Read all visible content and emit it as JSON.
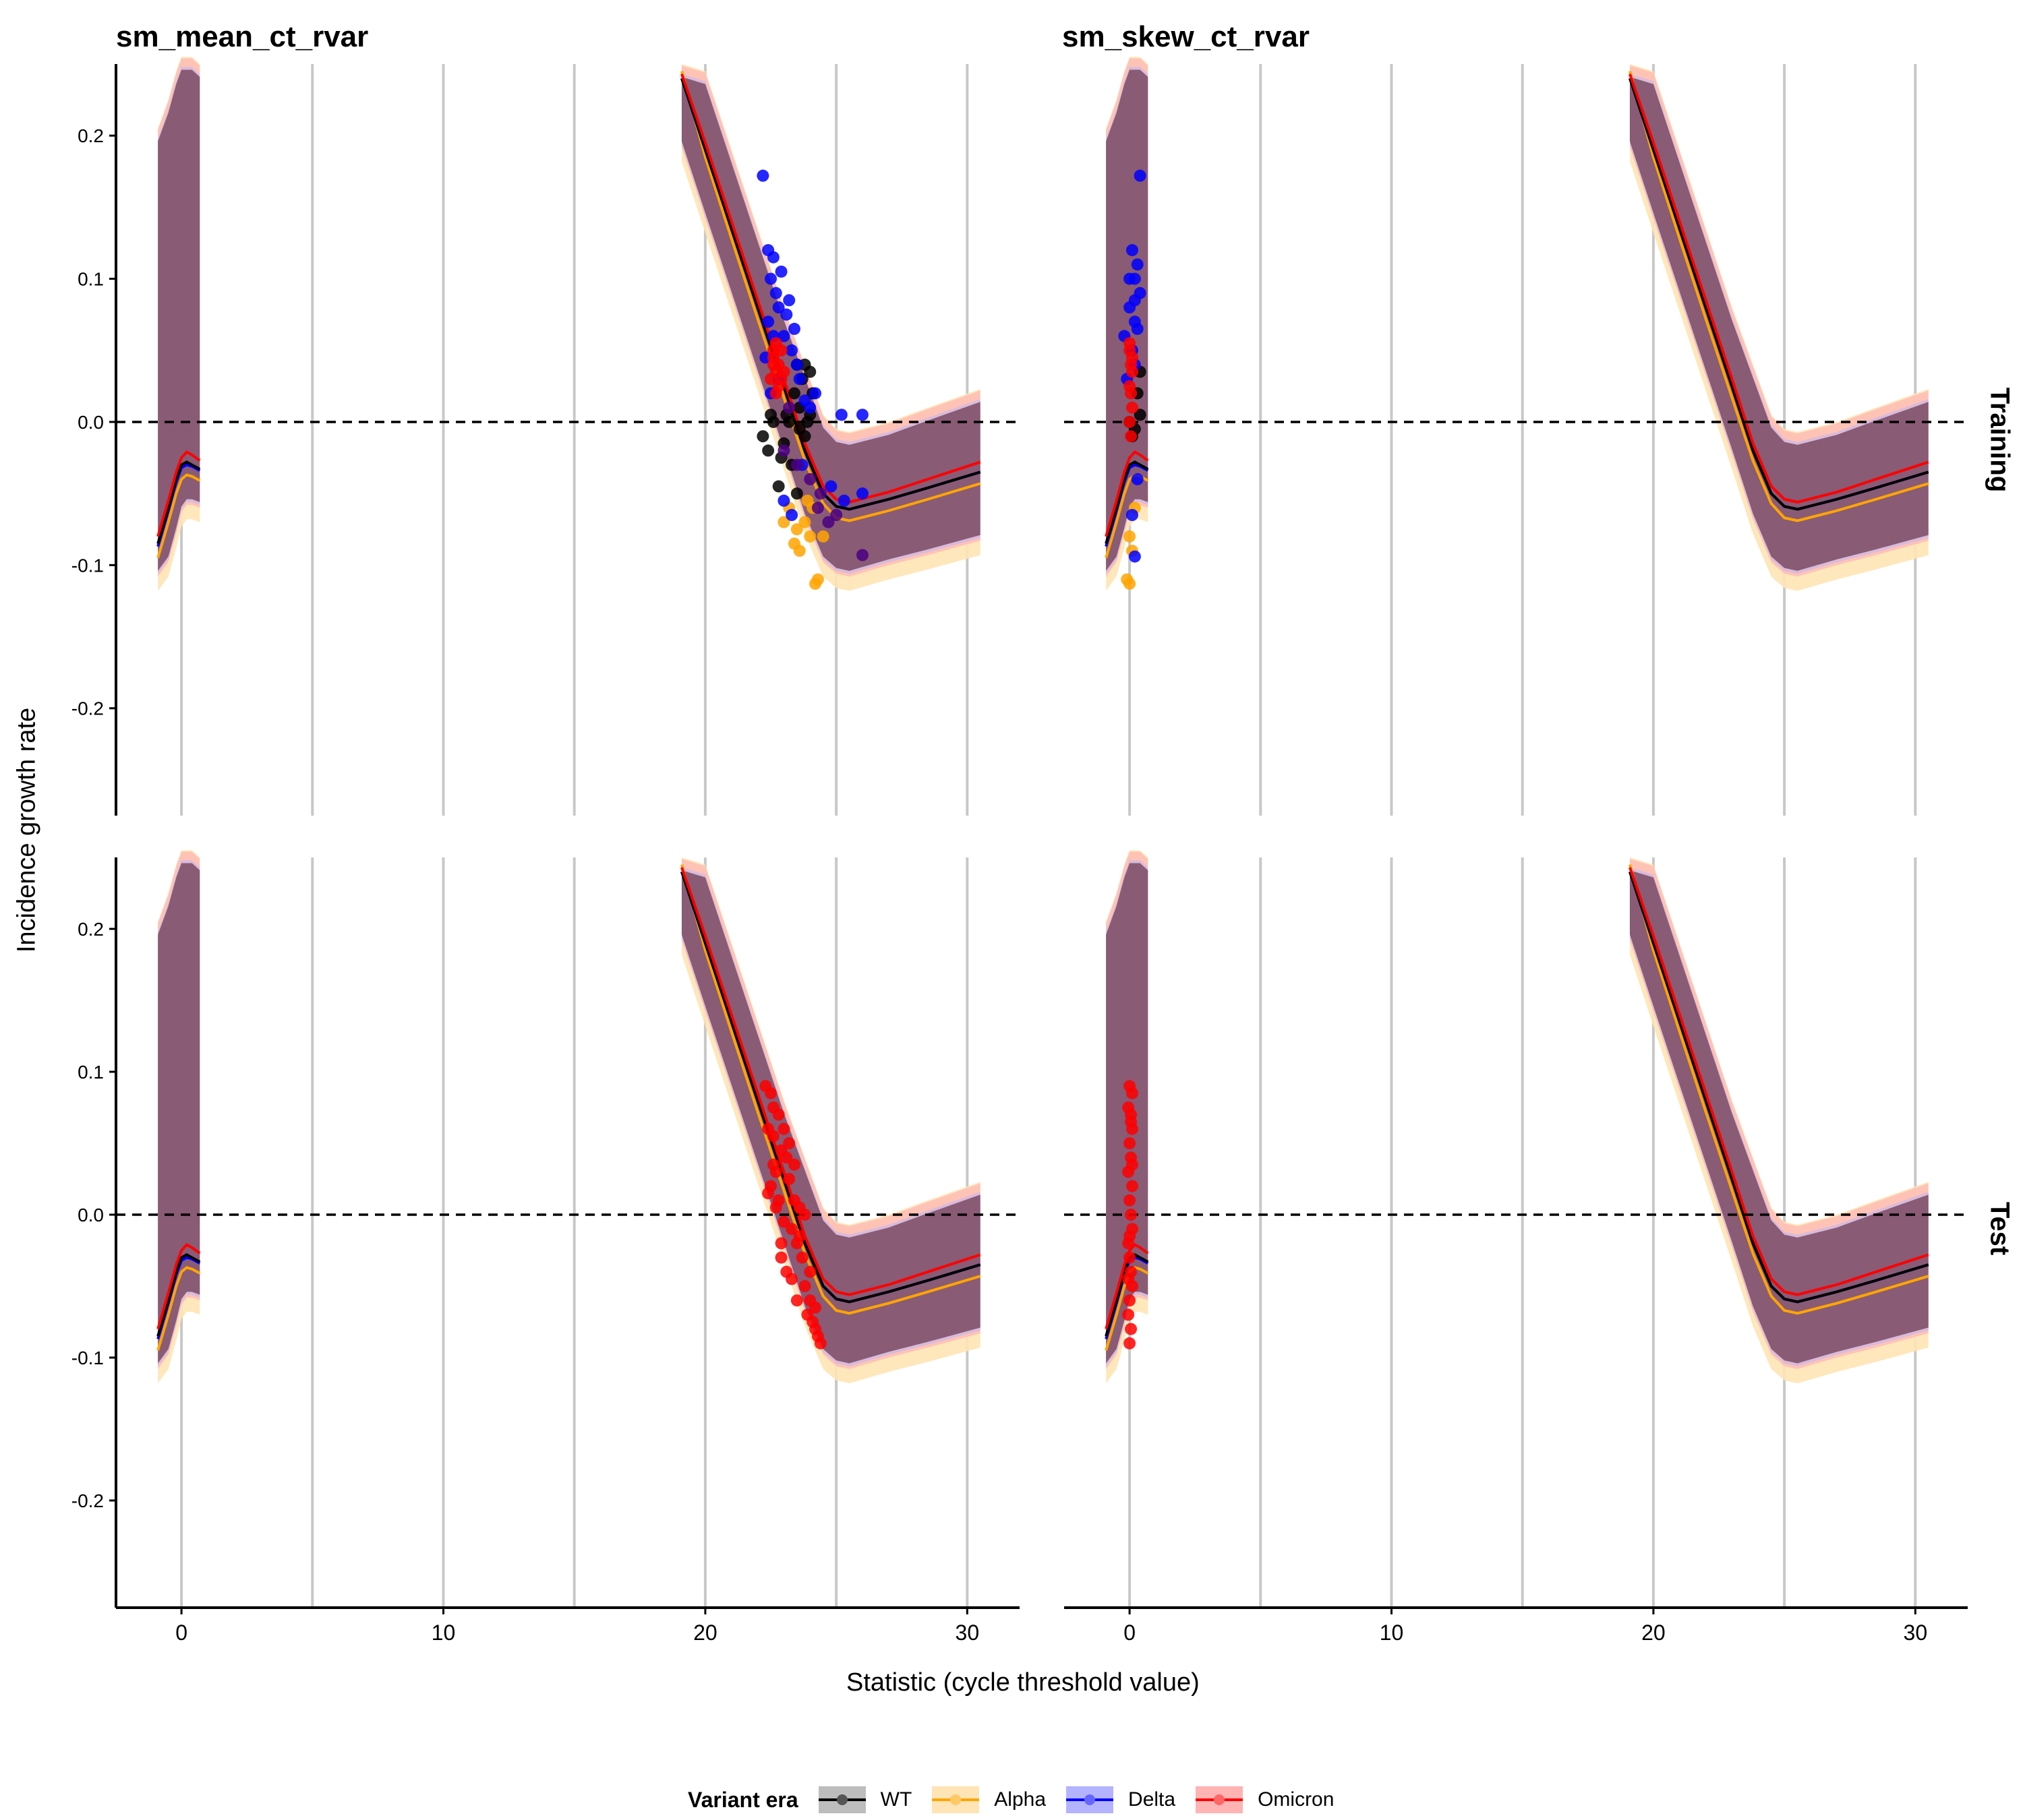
{
  "chart_data": {
    "type": "line",
    "facet_titles": [
      "sm_mean_ct_rvar",
      "sm_skew_ct_rvar"
    ],
    "row_strips": [
      "Training",
      "Test"
    ],
    "xlabel": "Statistic (cycle threshold value)",
    "ylabel": "Incidence growth rate",
    "xlim": [
      -2.5,
      32
    ],
    "ylim": [
      -0.275,
      0.25
    ],
    "x_ticks": [
      0,
      10,
      20,
      30
    ],
    "x_tick_labels": [
      "0",
      "10",
      "20",
      "30"
    ],
    "y_ticks": [
      -0.2,
      -0.1,
      0.0,
      0.1,
      0.2
    ],
    "y_tick_labels": [
      "-0.2",
      "-0.1",
      "0.0",
      "0.1",
      "0.2"
    ],
    "x_gridlines": [
      0,
      5,
      10,
      15,
      20,
      25,
      30
    ],
    "hline": 0,
    "legend": {
      "title": "Variant era",
      "position": "bottom",
      "entries": [
        {
          "name": "WT",
          "color": "#000000",
          "fill": "#bdbdbd"
        },
        {
          "name": "Alpha",
          "color": "#FFA500",
          "fill": "#FFE4B5"
        },
        {
          "name": "Delta",
          "color": "#0000FF",
          "fill": "#B3B3FF"
        },
        {
          "name": "Omicron",
          "color": "#FF0000",
          "fill": "#FFB3B3"
        }
      ]
    },
    "ribbon_fill": "#7a4a63",
    "curves": {
      "segment_left": {
        "x": [
          -0.9,
          -0.5,
          -0.2,
          0.0,
          0.2,
          0.4,
          0.7
        ],
        "WT": [
          -0.085,
          -0.06,
          -0.04,
          -0.03,
          -0.028,
          -0.03,
          -0.033
        ],
        "Alpha": [
          -0.095,
          -0.07,
          -0.05,
          -0.04,
          -0.037,
          -0.038,
          -0.041
        ],
        "Delta": [
          -0.087,
          -0.062,
          -0.042,
          -0.032,
          -0.03,
          -0.031,
          -0.034
        ],
        "Omicron": [
          -0.08,
          -0.055,
          -0.035,
          -0.025,
          -0.021,
          -0.023,
          -0.027
        ],
        "band_low": [
          -0.11,
          -0.1,
          -0.08,
          -0.065,
          -0.06,
          -0.06,
          -0.062
        ],
        "band_high": [
          0.2,
          0.22,
          0.24,
          0.25,
          0.25,
          0.25,
          0.245
        ]
      },
      "segment_right": {
        "x": [
          19.1,
          20,
          21,
          22,
          23,
          23.8,
          24.5,
          25,
          25.5,
          27,
          28.5,
          30.5
        ],
        "WT": [
          0.24,
          0.19,
          0.135,
          0.08,
          0.025,
          -0.02,
          -0.05,
          -0.059,
          -0.061,
          -0.054,
          -0.046,
          -0.035
        ],
        "Alpha": [
          0.245,
          0.185,
          0.128,
          0.072,
          0.017,
          -0.027,
          -0.057,
          -0.067,
          -0.069,
          -0.062,
          -0.054,
          -0.043
        ],
        "Delta": [
          0.24,
          0.19,
          0.135,
          0.08,
          0.025,
          -0.02,
          -0.05,
          -0.059,
          -0.061,
          -0.054,
          -0.046,
          -0.035
        ],
        "Omicron": [
          0.243,
          0.195,
          0.14,
          0.085,
          0.03,
          -0.015,
          -0.045,
          -0.054,
          -0.056,
          -0.049,
          -0.04,
          -0.028
        ],
        "band_low": [
          0.19,
          0.14,
          0.085,
          0.03,
          -0.025,
          -0.07,
          -0.1,
          -0.108,
          -0.11,
          -0.102,
          -0.095,
          -0.085
        ],
        "band_high": [
          0.245,
          0.24,
          0.185,
          0.13,
          0.075,
          0.035,
          0.0,
          -0.01,
          -0.012,
          -0.005,
          0.005,
          0.018
        ]
      }
    },
    "points": {
      "panel_mean_training": {
        "WT": [
          [
            22.2,
            -0.01
          ],
          [
            22.4,
            -0.02
          ],
          [
            22.6,
            0.0
          ],
          [
            22.8,
            -0.045
          ],
          [
            23.0,
            -0.015
          ],
          [
            23.2,
            0.0
          ],
          [
            23.4,
            0.02
          ],
          [
            23.5,
            -0.05
          ],
          [
            23.6,
            0.01
          ],
          [
            23.7,
            0.03
          ],
          [
            23.8,
            0.04
          ],
          [
            23.9,
            0.0
          ],
          [
            24.0,
            0.035
          ],
          [
            24.1,
            0.02
          ],
          [
            23.3,
            -0.03
          ],
          [
            22.9,
            -0.025
          ],
          [
            23.1,
            0.005
          ],
          [
            23.6,
            -0.005
          ],
          [
            24.0,
            0.005
          ],
          [
            23.8,
            -0.01
          ],
          [
            22.5,
            0.005
          ],
          [
            23.5,
            0.04
          ]
        ],
        "Alpha": [
          [
            23.0,
            -0.07
          ],
          [
            23.2,
            -0.06
          ],
          [
            23.4,
            -0.085
          ],
          [
            23.6,
            -0.09
          ],
          [
            23.8,
            -0.07
          ],
          [
            24.0,
            -0.08
          ],
          [
            24.3,
            -0.11
          ],
          [
            24.2,
            -0.113
          ],
          [
            24.5,
            -0.08
          ],
          [
            24.1,
            -0.06
          ],
          [
            23.9,
            -0.055
          ],
          [
            23.5,
            -0.075
          ]
        ],
        "Delta": [
          [
            22.2,
            0.172
          ],
          [
            22.4,
            0.12
          ],
          [
            22.5,
            0.1
          ],
          [
            22.6,
            0.115
          ],
          [
            22.7,
            0.09
          ],
          [
            22.8,
            0.08
          ],
          [
            22.9,
            0.105
          ],
          [
            23.0,
            0.06
          ],
          [
            23.1,
            0.075
          ],
          [
            23.2,
            0.085
          ],
          [
            23.3,
            0.05
          ],
          [
            23.4,
            0.065
          ],
          [
            22.6,
            0.06
          ],
          [
            22.4,
            0.07
          ],
          [
            22.8,
            0.03
          ],
          [
            23.5,
            0.04
          ],
          [
            23.6,
            0.03
          ],
          [
            23.8,
            0.015
          ],
          [
            24.0,
            0.01
          ],
          [
            25.2,
            0.005
          ],
          [
            26.0,
            0.005
          ],
          [
            26.0,
            -0.05
          ],
          [
            25.3,
            -0.055
          ],
          [
            24.8,
            -0.045
          ],
          [
            23.3,
            -0.065
          ],
          [
            23.0,
            -0.055
          ],
          [
            23.7,
            -0.03
          ],
          [
            22.5,
            0.02
          ],
          [
            24.2,
            0.02
          ],
          [
            22.3,
            0.045
          ]
        ],
        "Omicron": [
          [
            22.6,
            0.05
          ],
          [
            22.7,
            0.055
          ],
          [
            22.8,
            0.04
          ],
          [
            22.9,
            0.03
          ],
          [
            22.7,
            0.035
          ],
          [
            22.6,
            0.04
          ],
          [
            22.8,
            0.025
          ],
          [
            22.5,
            0.03
          ],
          [
            22.7,
            0.02
          ],
          [
            22.9,
            0.05
          ],
          [
            22.6,
            0.045
          ],
          [
            23.0,
            0.035
          ]
        ],
        "Mixed": [
          [
            23.0,
            -0.02
          ],
          [
            23.5,
            -0.03
          ],
          [
            24.3,
            -0.06
          ],
          [
            24.7,
            -0.07
          ],
          [
            25.0,
            -0.065
          ],
          [
            26.0,
            -0.093
          ],
          [
            24.0,
            -0.04
          ],
          [
            23.2,
            0.01
          ],
          [
            24.4,
            -0.05
          ]
        ]
      },
      "panel_skew_training": {
        "WT": [
          [
            0.0,
            0.0
          ],
          [
            0.3,
            0.02
          ],
          [
            0.4,
            0.035
          ],
          [
            0.1,
            -0.01
          ],
          [
            0.4,
            0.005
          ],
          [
            0.2,
            -0.005
          ]
        ],
        "Alpha": [
          [
            -0.1,
            -0.11
          ],
          [
            0.0,
            -0.113
          ],
          [
            0.1,
            -0.09
          ],
          [
            0.0,
            -0.08
          ],
          [
            0.2,
            -0.06
          ]
        ],
        "Delta": [
          [
            0.4,
            0.172
          ],
          [
            0.1,
            0.12
          ],
          [
            0.2,
            0.1
          ],
          [
            0.3,
            0.11
          ],
          [
            0.4,
            0.09
          ],
          [
            0.0,
            0.08
          ],
          [
            0.2,
            0.07
          ],
          [
            -0.2,
            0.06
          ],
          [
            0.1,
            0.05
          ],
          [
            0.3,
            0.065
          ],
          [
            0.2,
            -0.094
          ],
          [
            0.1,
            -0.065
          ],
          [
            0.3,
            -0.04
          ],
          [
            -0.1,
            0.03
          ],
          [
            0.2,
            0.085
          ],
          [
            0.0,
            0.1
          ],
          [
            0.2,
            0.04
          ]
        ],
        "Omicron": [
          [
            0.0,
            0.05
          ],
          [
            0.05,
            0.04
          ],
          [
            0.1,
            0.035
          ],
          [
            0.0,
            0.025
          ],
          [
            0.05,
            0.02
          ],
          [
            0.1,
            0.01
          ],
          [
            0.0,
            0.0
          ],
          [
            0.05,
            -0.01
          ],
          [
            0.1,
            0.045
          ],
          [
            0.0,
            0.055
          ]
        ]
      },
      "panel_mean_test": {
        "Omicron": [
          [
            22.3,
            0.09
          ],
          [
            22.5,
            0.085
          ],
          [
            22.6,
            0.075
          ],
          [
            22.8,
            0.07
          ],
          [
            22.4,
            0.06
          ],
          [
            22.6,
            0.055
          ],
          [
            23.0,
            0.06
          ],
          [
            22.9,
            0.045
          ],
          [
            23.1,
            0.04
          ],
          [
            22.7,
            0.03
          ],
          [
            22.5,
            0.02
          ],
          [
            22.8,
            0.01
          ],
          [
            23.2,
            0.025
          ],
          [
            23.4,
            0.01
          ],
          [
            23.6,
            0.005
          ],
          [
            23.3,
            -0.01
          ],
          [
            23.0,
            -0.005
          ],
          [
            22.9,
            -0.02
          ],
          [
            23.5,
            -0.02
          ],
          [
            23.7,
            -0.03
          ],
          [
            23.1,
            -0.04
          ],
          [
            23.3,
            -0.045
          ],
          [
            23.8,
            -0.05
          ],
          [
            24.0,
            -0.06
          ],
          [
            23.9,
            -0.07
          ],
          [
            24.2,
            -0.08
          ],
          [
            24.4,
            -0.09
          ],
          [
            24.1,
            -0.075
          ],
          [
            24.3,
            -0.085
          ],
          [
            22.7,
            0.005
          ],
          [
            22.4,
            0.015
          ],
          [
            23.4,
            0.035
          ],
          [
            23.6,
            -0.015
          ],
          [
            24.0,
            -0.04
          ],
          [
            23.8,
            0.0
          ],
          [
            22.6,
            0.035
          ],
          [
            23.2,
            0.05
          ],
          [
            22.9,
            -0.03
          ],
          [
            23.5,
            -0.06
          ],
          [
            24.2,
            -0.065
          ]
        ]
      },
      "panel_skew_test": {
        "Omicron": [
          [
            0.0,
            0.09
          ],
          [
            0.1,
            0.085
          ],
          [
            -0.05,
            0.075
          ],
          [
            0.05,
            0.07
          ],
          [
            0.1,
            0.06
          ],
          [
            0.0,
            0.05
          ],
          [
            0.05,
            0.04
          ],
          [
            -0.05,
            0.03
          ],
          [
            0.1,
            0.02
          ],
          [
            0.0,
            0.01
          ],
          [
            0.05,
            0.0
          ],
          [
            0.1,
            -0.01
          ],
          [
            -0.05,
            -0.02
          ],
          [
            0.0,
            -0.03
          ],
          [
            0.05,
            -0.04
          ],
          [
            0.1,
            -0.05
          ],
          [
            0.0,
            -0.06
          ],
          [
            -0.05,
            -0.07
          ],
          [
            0.05,
            -0.08
          ],
          [
            0.0,
            -0.09
          ],
          [
            0.05,
            0.065
          ],
          [
            0.0,
            -0.015
          ],
          [
            0.1,
            0.035
          ],
          [
            -0.05,
            -0.045
          ]
        ]
      }
    }
  }
}
